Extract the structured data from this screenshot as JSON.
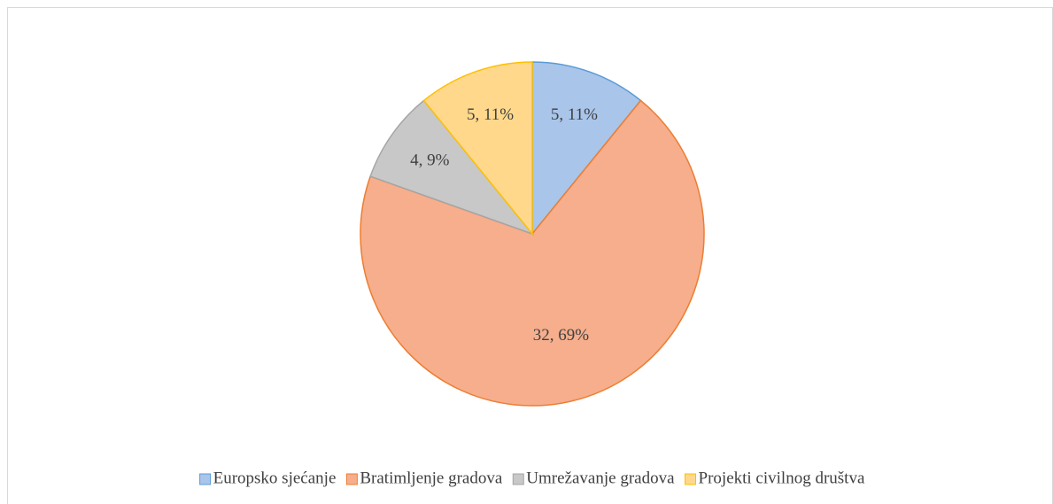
{
  "chart_data": {
    "type": "pie",
    "categories": [
      "Europsko sjećanje",
      "Bratimljenje gradova",
      "Umrežavanje gradova",
      "Projekti civilnog društva"
    ],
    "values": [
      5,
      32,
      4,
      5
    ],
    "value_labels": [
      "5, 11%",
      "32, 69%",
      "4, 9%",
      "5, 11%"
    ],
    "colors": [
      "#a9c5ea",
      "#f6ae8c",
      "#c8c8c8",
      "#ffd88c"
    ],
    "edge_colors": [
      "#5b9bd5",
      "#ed7d31",
      "#a5a5a5",
      "#ffc000"
    ],
    "legend": "bottom"
  }
}
